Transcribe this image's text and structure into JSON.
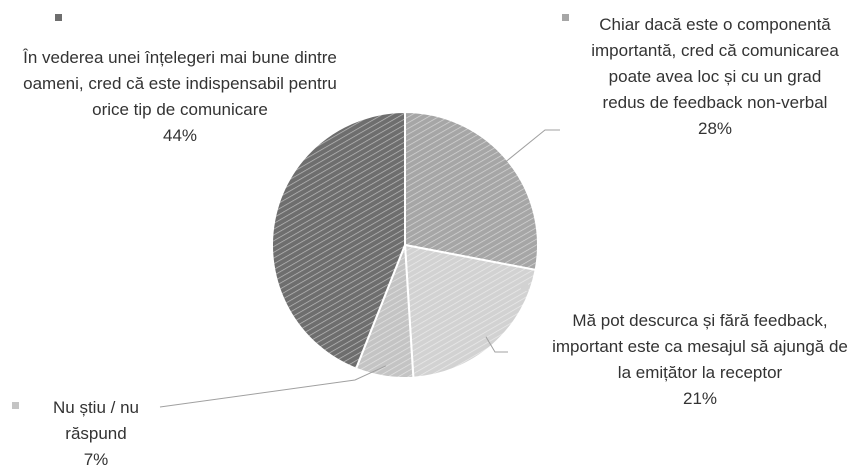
{
  "chart_data": {
    "type": "pie",
    "categories": [
      "Chiar dacă este o componentă importantă, cred că comunicarea poate avea loc și cu un grad redus de feedback non-verbal",
      "Mă pot descurca și fără feedback, important este ca mesajul să ajungă de la emițător la receptor",
      "Nu știu / nu răspund",
      "În vederea unei înțelegeri mai bune dintre oameni, cred că este indispensabil pentru orice tip de comunicare"
    ],
    "values": [
      28,
      21,
      7,
      44
    ],
    "value_labels": [
      "28%",
      "21%",
      "7%",
      "44%"
    ],
    "colors": [
      "#a6a6a6",
      "#d2d2d2",
      "#c4c4c4",
      "#6e6e6e"
    ]
  }
}
